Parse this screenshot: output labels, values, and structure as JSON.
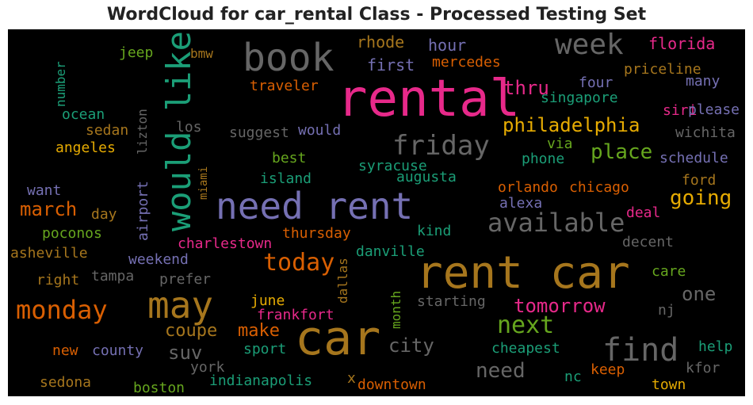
{
  "chart_data": {
    "type": "wordcloud",
    "title": "WordCloud for car_rental Class - Processed Testing Set",
    "background": "#000000",
    "words": [
      {
        "text": "rental",
        "color": "#e7298a"
      },
      {
        "text": "rent car",
        "color": "#a6761d"
      },
      {
        "text": "car",
        "color": "#a6761d"
      },
      {
        "text": "need rent",
        "color": "#7570b3"
      },
      {
        "text": "book",
        "color": "#666666"
      },
      {
        "text": "would like",
        "color": "#1b9e77"
      },
      {
        "text": "may",
        "color": "#a6761d"
      },
      {
        "text": "find",
        "color": "#666666"
      },
      {
        "text": "week",
        "color": "#666666"
      },
      {
        "text": "friday",
        "color": "#666666"
      },
      {
        "text": "monday",
        "color": "#d95f02"
      },
      {
        "text": "available",
        "color": "#666666"
      },
      {
        "text": "philadelphia",
        "color": "#e6ab02"
      },
      {
        "text": "today",
        "color": "#d95f02"
      },
      {
        "text": "next",
        "color": "#66a61e"
      },
      {
        "text": "place",
        "color": "#66a61e"
      },
      {
        "text": "going",
        "color": "#e6ab02"
      },
      {
        "text": "tomorrow",
        "color": "#e7298a"
      },
      {
        "text": "march",
        "color": "#d95f02"
      },
      {
        "text": "thru",
        "color": "#e7298a"
      },
      {
        "text": "city",
        "color": "#666666"
      },
      {
        "text": "need",
        "color": "#666666"
      },
      {
        "text": "coupe",
        "color": "#a6761d"
      },
      {
        "text": "make",
        "color": "#d95f02"
      },
      {
        "text": "suv",
        "color": "#666666"
      },
      {
        "text": "one",
        "color": "#666666"
      },
      {
        "text": "florida",
        "color": "#e7298a"
      },
      {
        "text": "rhode",
        "color": "#a6761d"
      },
      {
        "text": "hour",
        "color": "#7570b3"
      },
      {
        "text": "first",
        "color": "#7570b3"
      },
      {
        "text": "mercedes",
        "color": "#d95f02"
      },
      {
        "text": "priceline",
        "color": "#a6761d"
      },
      {
        "text": "many",
        "color": "#7570b3"
      },
      {
        "text": "four",
        "color": "#7570b3"
      },
      {
        "text": "singapore",
        "color": "#1b9e77"
      },
      {
        "text": "siri",
        "color": "#e7298a"
      },
      {
        "text": "please",
        "color": "#7570b3"
      },
      {
        "text": "wichita",
        "color": "#666666"
      },
      {
        "text": "jeep",
        "color": "#66a61e"
      },
      {
        "text": "bmw",
        "color": "#a6761d"
      },
      {
        "text": "number",
        "color": "#1b9e77"
      },
      {
        "text": "ocean",
        "color": "#1b9e77"
      },
      {
        "text": "sedan",
        "color": "#a6761d"
      },
      {
        "text": "los",
        "color": "#666666"
      },
      {
        "text": "angeles",
        "color": "#e6ab02"
      },
      {
        "text": "lizton",
        "color": "#666666"
      },
      {
        "text": "airport",
        "color": "#7570b3"
      },
      {
        "text": "miami",
        "color": "#a6761d"
      },
      {
        "text": "traveler",
        "color": "#d95f02"
      },
      {
        "text": "suggest",
        "color": "#666666"
      },
      {
        "text": "would",
        "color": "#7570b3"
      },
      {
        "text": "best",
        "color": "#66a61e"
      },
      {
        "text": "island",
        "color": "#1b9e77"
      },
      {
        "text": "syracuse",
        "color": "#1b9e77"
      },
      {
        "text": "augusta",
        "color": "#1b9e77"
      },
      {
        "text": "via",
        "color": "#66a61e"
      },
      {
        "text": "phone",
        "color": "#1b9e77"
      },
      {
        "text": "schedule",
        "color": "#7570b3"
      },
      {
        "text": "ford",
        "color": "#a6761d"
      },
      {
        "text": "orlando",
        "color": "#d95f02"
      },
      {
        "text": "chicago",
        "color": "#d95f02"
      },
      {
        "text": "alexa",
        "color": "#7570b3"
      },
      {
        "text": "deal",
        "color": "#e7298a"
      },
      {
        "text": "want",
        "color": "#7570b3"
      },
      {
        "text": "day",
        "color": "#a6761d"
      },
      {
        "text": "poconos",
        "color": "#66a61e"
      },
      {
        "text": "asheville",
        "color": "#a6761d"
      },
      {
        "text": "charlestown",
        "color": "#e7298a"
      },
      {
        "text": "thursday",
        "color": "#d95f02"
      },
      {
        "text": "kind",
        "color": "#1b9e77"
      },
      {
        "text": "decent",
        "color": "#666666"
      },
      {
        "text": "weekend",
        "color": "#7570b3"
      },
      {
        "text": "danville",
        "color": "#1b9e77"
      },
      {
        "text": "dallas",
        "color": "#a6761d"
      },
      {
        "text": "right",
        "color": "#a6761d"
      },
      {
        "text": "tampa",
        "color": "#666666"
      },
      {
        "text": "prefer",
        "color": "#666666"
      },
      {
        "text": "care",
        "color": "#66a61e"
      },
      {
        "text": "june",
        "color": "#e6ab02"
      },
      {
        "text": "month",
        "color": "#66a61e"
      },
      {
        "text": "starting",
        "color": "#666666"
      },
      {
        "text": "frankfort",
        "color": "#e7298a"
      },
      {
        "text": "nj",
        "color": "#666666"
      },
      {
        "text": "new",
        "color": "#d95f02"
      },
      {
        "text": "county",
        "color": "#7570b3"
      },
      {
        "text": "sport",
        "color": "#1b9e77"
      },
      {
        "text": "cheapest",
        "color": "#1b9e77"
      },
      {
        "text": "help",
        "color": "#1b9e77"
      },
      {
        "text": "york",
        "color": "#666666"
      },
      {
        "text": "indianapolis",
        "color": "#1b9e77"
      },
      {
        "text": "x",
        "color": "#a6761d"
      },
      {
        "text": "nc",
        "color": "#1b9e77"
      },
      {
        "text": "keep",
        "color": "#d95f02"
      },
      {
        "text": "kfor",
        "color": "#666666"
      },
      {
        "text": "sedona",
        "color": "#a6761d"
      },
      {
        "text": "boston",
        "color": "#66a61e"
      },
      {
        "text": "downtown",
        "color": "#d95f02"
      },
      {
        "text": "town",
        "color": "#e6ab02"
      }
    ]
  }
}
